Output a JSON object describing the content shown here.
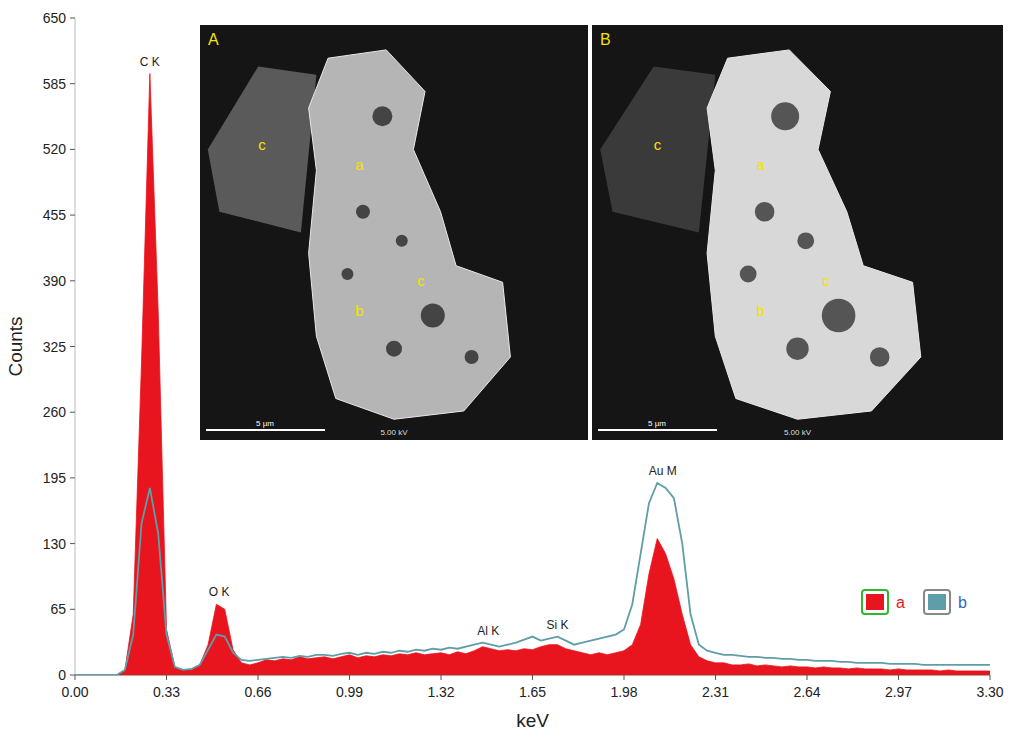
{
  "chart_data": {
    "type": "line",
    "x_label": "keV",
    "y_label": "Counts",
    "x": [
      0,
      0.03,
      0.06,
      0.09,
      0.12,
      0.15,
      0.18,
      0.21,
      0.24,
      0.27,
      0.3,
      0.33,
      0.36,
      0.39,
      0.42,
      0.45,
      0.48,
      0.51,
      0.54,
      0.57,
      0.6,
      0.63,
      0.66,
      0.69,
      0.72,
      0.75,
      0.78,
      0.81,
      0.84,
      0.87,
      0.9,
      0.93,
      0.96,
      0.99,
      1.02,
      1.05,
      1.08,
      1.11,
      1.14,
      1.17,
      1.2,
      1.23,
      1.26,
      1.29,
      1.32,
      1.35,
      1.38,
      1.41,
      1.44,
      1.47,
      1.5,
      1.53,
      1.56,
      1.59,
      1.62,
      1.65,
      1.68,
      1.71,
      1.74,
      1.77,
      1.8,
      1.83,
      1.86,
      1.89,
      1.92,
      1.95,
      1.98,
      2.01,
      2.04,
      2.07,
      2.1,
      2.13,
      2.16,
      2.19,
      2.22,
      2.25,
      2.28,
      2.31,
      2.34,
      2.37,
      2.4,
      2.43,
      2.46,
      2.49,
      2.52,
      2.55,
      2.58,
      2.61,
      2.64,
      2.67,
      2.7,
      2.73,
      2.76,
      2.79,
      2.82,
      2.85,
      2.88,
      2.91,
      2.94,
      2.97,
      3.0,
      3.03,
      3.06,
      3.09,
      3.12,
      3.15,
      3.18,
      3.21,
      3.24,
      3.27,
      3.3
    ],
    "series": [
      {
        "name": "a",
        "type": "area",
        "color": "#e8141e",
        "values": [
          0,
          0,
          0,
          0,
          0,
          0,
          5,
          60,
          310,
          595,
          360,
          45,
          8,
          5,
          5,
          10,
          30,
          70,
          65,
          25,
          12,
          10,
          12,
          15,
          14,
          16,
          15,
          18,
          16,
          17,
          18,
          16,
          18,
          20,
          17,
          19,
          18,
          20,
          19,
          21,
          20,
          22,
          20,
          21,
          22,
          20,
          23,
          21,
          24,
          28,
          26,
          24,
          25,
          24,
          26,
          25,
          28,
          30,
          30,
          26,
          24,
          22,
          20,
          22,
          20,
          22,
          24,
          30,
          50,
          100,
          135,
          120,
          95,
          60,
          30,
          18,
          14,
          12,
          12,
          10,
          10,
          11,
          9,
          10,
          9,
          8,
          9,
          8,
          8,
          7,
          8,
          7,
          7,
          6,
          7,
          6,
          6,
          6,
          5,
          6,
          5,
          5,
          5,
          5,
          4,
          5,
          4,
          4,
          4,
          4,
          4
        ]
      },
      {
        "name": "b",
        "type": "line",
        "color": "#5e9ea8",
        "values": [
          0,
          0,
          0,
          0,
          0,
          0,
          5,
          40,
          150,
          185,
          140,
          40,
          8,
          5,
          6,
          10,
          25,
          40,
          38,
          22,
          15,
          14,
          15,
          16,
          17,
          18,
          17,
          19,
          18,
          20,
          20,
          19,
          21,
          22,
          20,
          22,
          21,
          23,
          22,
          24,
          23,
          25,
          24,
          26,
          25,
          27,
          26,
          28,
          30,
          32,
          30,
          28,
          30,
          32,
          35,
          38,
          34,
          36,
          38,
          34,
          30,
          32,
          34,
          36,
          38,
          40,
          45,
          70,
          120,
          170,
          190,
          185,
          175,
          130,
          60,
          30,
          24,
          22,
          20,
          20,
          19,
          18,
          18,
          17,
          17,
          16,
          16,
          15,
          15,
          14,
          14,
          14,
          13,
          13,
          12,
          12,
          12,
          12,
          11,
          11,
          11,
          11,
          10,
          10,
          10,
          10,
          10,
          10,
          10,
          10,
          10
        ]
      }
    ],
    "annotations": [
      {
        "text": "C K",
        "x": 0.27
      },
      {
        "text": "O K",
        "x": 0.52
      },
      {
        "text": "Al K",
        "x": 1.49
      },
      {
        "text": "Si K",
        "x": 1.74
      },
      {
        "text": "Au M",
        "x": 2.12
      }
    ],
    "xlim": [
      0,
      3.3
    ],
    "xticks": [
      {
        "value": 0,
        "label": "0.00"
      },
      0.33,
      0.66,
      0.99,
      1.32,
      1.65,
      1.98,
      2.31,
      2.64,
      2.97,
      {
        "value": 3.3,
        "label": "3.30"
      }
    ],
    "ylim": [
      0,
      650
    ],
    "yticks": [
      0,
      65,
      130,
      195,
      260,
      325,
      390,
      455,
      520,
      585,
      650
    ],
    "grid": false,
    "legend": "right",
    "insets": [
      {
        "label": "A",
        "scale_bar": "5 µm",
        "voltage": "5.00 kV",
        "markers": [
          "c",
          "a",
          "b",
          "c"
        ]
      },
      {
        "label": "B",
        "scale_bar": "5 µm",
        "voltage": "5.00 kV",
        "markers": [
          "c",
          "a",
          "b",
          "c"
        ]
      }
    ]
  }
}
